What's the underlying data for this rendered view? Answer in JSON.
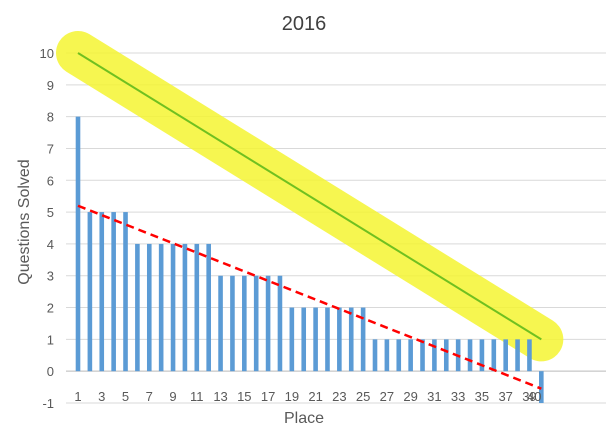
{
  "chart_data": {
    "type": "bar",
    "title": "2016",
    "xlabel": "Place",
    "ylabel": "Questions Solved",
    "ylim": [
      -1,
      10
    ],
    "yticks": [
      "-1",
      "0",
      "1",
      "2",
      "3",
      "4",
      "5",
      "6",
      "7",
      "8",
      "9",
      "10"
    ],
    "xtick_labels": [
      "1",
      "3",
      "5",
      "7",
      "9",
      "11",
      "13",
      "15",
      "17",
      "19",
      "21",
      "23",
      "25",
      "27",
      "29",
      "31",
      "33",
      "35",
      "37",
      "39",
      "40"
    ],
    "categories": [
      1,
      2,
      3,
      4,
      5,
      6,
      7,
      8,
      9,
      10,
      11,
      12,
      13,
      14,
      15,
      16,
      17,
      18,
      19,
      20,
      21,
      22,
      23,
      24,
      25,
      26,
      27,
      28,
      29,
      30,
      31,
      32,
      33,
      34,
      35,
      36,
      37,
      38,
      39,
      40
    ],
    "values": [
      8,
      5,
      5,
      5,
      5,
      4,
      4,
      4,
      4,
      4,
      4,
      4,
      3,
      3,
      3,
      3,
      3,
      3,
      2,
      2,
      2,
      2,
      2,
      2,
      2,
      1,
      1,
      1,
      1,
      1,
      1,
      1,
      1,
      1,
      1,
      1,
      1,
      1,
      1,
      -1
    ],
    "grid": true,
    "colors": {
      "bars": "#5b9bd5",
      "trend": "#ff0000",
      "ideal_line": "#70c020",
      "highlight": "#f5f532"
    },
    "annotations": {
      "ideal_line": {
        "from": [
          1,
          10
        ],
        "to": [
          40,
          1
        ]
      },
      "trend_line": {
        "from": [
          1,
          5.2
        ],
        "to": [
          40,
          -0.55
        ]
      }
    }
  }
}
